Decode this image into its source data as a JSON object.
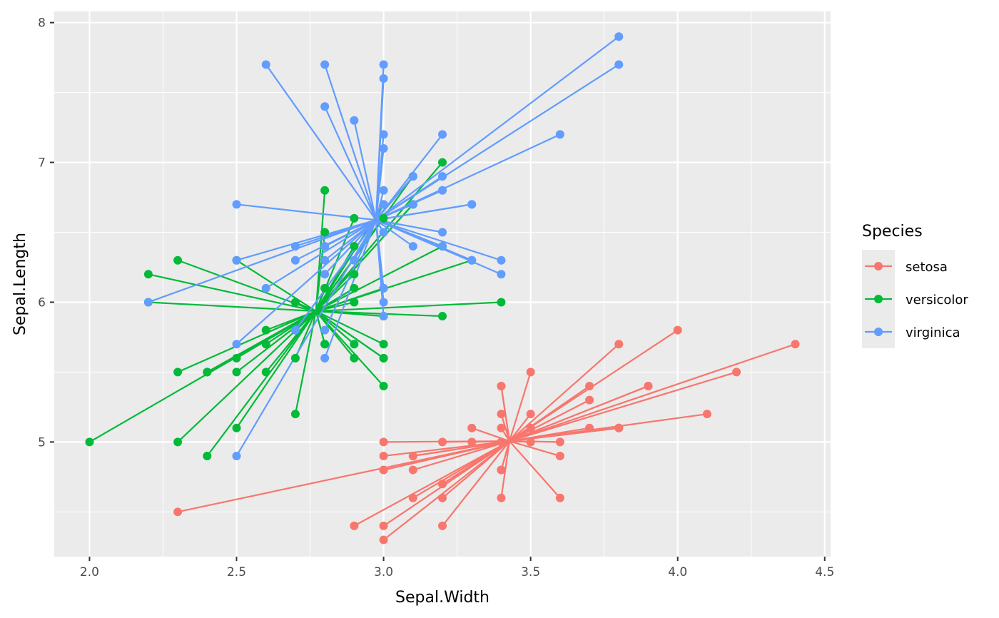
{
  "chart_data": {
    "type": "scatter",
    "subtype": "star (points connected to group centroid)",
    "title": "",
    "xlabel": "Sepal.Width",
    "ylabel": "Sepal.Length",
    "xlim": [
      1.88,
      4.52
    ],
    "ylim": [
      4.18,
      8.08
    ],
    "x_ticks": [
      2.0,
      2.5,
      3.0,
      3.5,
      4.0,
      4.5
    ],
    "x_tick_labels": [
      "2.0",
      "2.5",
      "3.0",
      "3.5",
      "4.0",
      "4.5"
    ],
    "y_ticks": [
      5,
      6,
      7,
      8
    ],
    "y_tick_labels": [
      "5",
      "6",
      "7",
      "8"
    ],
    "grid": true,
    "legend": {
      "title": "Species",
      "position": "right"
    },
    "series": [
      {
        "name": "setosa",
        "color": "#F8766D",
        "centroid": {
          "x": 3.428,
          "y": 5.006
        },
        "points": [
          [
            3.5,
            5.1
          ],
          [
            3.0,
            4.9
          ],
          [
            3.2,
            4.7
          ],
          [
            3.1,
            4.6
          ],
          [
            3.6,
            5.0
          ],
          [
            3.9,
            5.4
          ],
          [
            3.4,
            4.6
          ],
          [
            3.4,
            5.0
          ],
          [
            2.9,
            4.4
          ],
          [
            3.1,
            4.9
          ],
          [
            3.7,
            5.4
          ],
          [
            3.4,
            4.8
          ],
          [
            3.0,
            4.8
          ],
          [
            3.0,
            4.3
          ],
          [
            4.0,
            5.8
          ],
          [
            4.4,
            5.7
          ],
          [
            3.9,
            5.4
          ],
          [
            3.5,
            5.1
          ],
          [
            3.8,
            5.7
          ],
          [
            3.8,
            5.1
          ],
          [
            3.4,
            5.4
          ],
          [
            3.7,
            5.1
          ],
          [
            3.6,
            4.6
          ],
          [
            3.3,
            5.1
          ],
          [
            3.4,
            4.8
          ],
          [
            3.0,
            5.0
          ],
          [
            3.4,
            5.0
          ],
          [
            3.5,
            5.2
          ],
          [
            3.4,
            5.2
          ],
          [
            3.2,
            4.7
          ],
          [
            3.1,
            4.8
          ],
          [
            3.4,
            5.4
          ],
          [
            4.1,
            5.2
          ],
          [
            4.2,
            5.5
          ],
          [
            3.1,
            4.9
          ],
          [
            3.2,
            5.0
          ],
          [
            3.5,
            5.5
          ],
          [
            3.6,
            4.9
          ],
          [
            3.0,
            4.4
          ],
          [
            3.4,
            5.1
          ],
          [
            3.5,
            5.0
          ],
          [
            2.3,
            4.5
          ],
          [
            3.2,
            4.4
          ],
          [
            3.5,
            5.0
          ],
          [
            3.8,
            5.1
          ],
          [
            3.0,
            4.8
          ],
          [
            3.8,
            5.1
          ],
          [
            3.2,
            4.6
          ],
          [
            3.7,
            5.3
          ],
          [
            3.3,
            5.0
          ]
        ]
      },
      {
        "name": "versicolor",
        "color": "#00BA38",
        "centroid": {
          "x": 2.77,
          "y": 5.936
        },
        "points": [
          [
            3.2,
            7.0
          ],
          [
            3.2,
            6.4
          ],
          [
            3.1,
            6.9
          ],
          [
            2.3,
            5.5
          ],
          [
            2.8,
            6.5
          ],
          [
            2.8,
            5.7
          ],
          [
            3.3,
            6.3
          ],
          [
            2.4,
            4.9
          ],
          [
            2.9,
            6.6
          ],
          [
            2.7,
            5.2
          ],
          [
            2.0,
            5.0
          ],
          [
            3.0,
            5.9
          ],
          [
            2.2,
            6.0
          ],
          [
            2.9,
            6.1
          ],
          [
            2.9,
            5.6
          ],
          [
            3.1,
            6.7
          ],
          [
            3.0,
            5.6
          ],
          [
            2.7,
            5.8
          ],
          [
            2.2,
            6.2
          ],
          [
            2.5,
            5.6
          ],
          [
            3.2,
            5.9
          ],
          [
            2.8,
            6.1
          ],
          [
            2.5,
            6.3
          ],
          [
            2.8,
            6.1
          ],
          [
            2.9,
            6.4
          ],
          [
            3.0,
            6.6
          ],
          [
            2.8,
            6.8
          ],
          [
            3.0,
            6.7
          ],
          [
            2.9,
            6.0
          ],
          [
            2.6,
            5.7
          ],
          [
            2.4,
            5.5
          ],
          [
            2.4,
            5.5
          ],
          [
            2.7,
            5.8
          ],
          [
            2.7,
            6.0
          ],
          [
            3.0,
            5.4
          ],
          [
            3.4,
            6.0
          ],
          [
            3.1,
            6.7
          ],
          [
            2.3,
            6.3
          ],
          [
            3.0,
            5.6
          ],
          [
            2.5,
            5.5
          ],
          [
            2.6,
            5.5
          ],
          [
            3.0,
            6.1
          ],
          [
            2.6,
            5.8
          ],
          [
            2.3,
            5.0
          ],
          [
            2.7,
            5.6
          ],
          [
            3.0,
            5.7
          ],
          [
            2.9,
            5.7
          ],
          [
            2.9,
            6.2
          ],
          [
            2.5,
            5.1
          ],
          [
            2.8,
            5.7
          ]
        ]
      },
      {
        "name": "virginica",
        "color": "#619CFF",
        "centroid": {
          "x": 2.974,
          "y": 6.588
        },
        "points": [
          [
            3.3,
            6.3
          ],
          [
            2.7,
            5.8
          ],
          [
            3.0,
            7.1
          ],
          [
            2.9,
            6.3
          ],
          [
            3.0,
            6.5
          ],
          [
            3.0,
            7.6
          ],
          [
            2.5,
            4.9
          ],
          [
            2.9,
            7.3
          ],
          [
            2.5,
            6.7
          ],
          [
            3.6,
            7.2
          ],
          [
            3.2,
            6.5
          ],
          [
            2.7,
            6.4
          ],
          [
            3.0,
            6.8
          ],
          [
            2.5,
            5.7
          ],
          [
            2.8,
            5.8
          ],
          [
            3.2,
            6.4
          ],
          [
            3.0,
            6.5
          ],
          [
            3.8,
            7.7
          ],
          [
            2.6,
            7.7
          ],
          [
            2.2,
            6.0
          ],
          [
            3.2,
            6.9
          ],
          [
            2.8,
            5.6
          ],
          [
            2.8,
            7.7
          ],
          [
            2.7,
            6.3
          ],
          [
            3.3,
            6.7
          ],
          [
            3.2,
            7.2
          ],
          [
            2.8,
            6.2
          ],
          [
            3.0,
            6.1
          ],
          [
            2.8,
            6.4
          ],
          [
            3.0,
            7.2
          ],
          [
            2.8,
            7.4
          ],
          [
            3.8,
            7.9
          ],
          [
            2.8,
            6.4
          ],
          [
            2.8,
            6.3
          ],
          [
            2.6,
            6.1
          ],
          [
            3.0,
            7.7
          ],
          [
            3.4,
            6.3
          ],
          [
            3.1,
            6.4
          ],
          [
            3.0,
            6.0
          ],
          [
            3.1,
            6.9
          ],
          [
            3.1,
            6.7
          ],
          [
            3.1,
            6.9
          ],
          [
            2.7,
            5.8
          ],
          [
            3.2,
            6.8
          ],
          [
            3.3,
            6.7
          ],
          [
            3.0,
            6.7
          ],
          [
            2.5,
            6.3
          ],
          [
            3.0,
            6.5
          ],
          [
            3.4,
            6.2
          ],
          [
            3.0,
            5.9
          ]
        ]
      }
    ]
  }
}
